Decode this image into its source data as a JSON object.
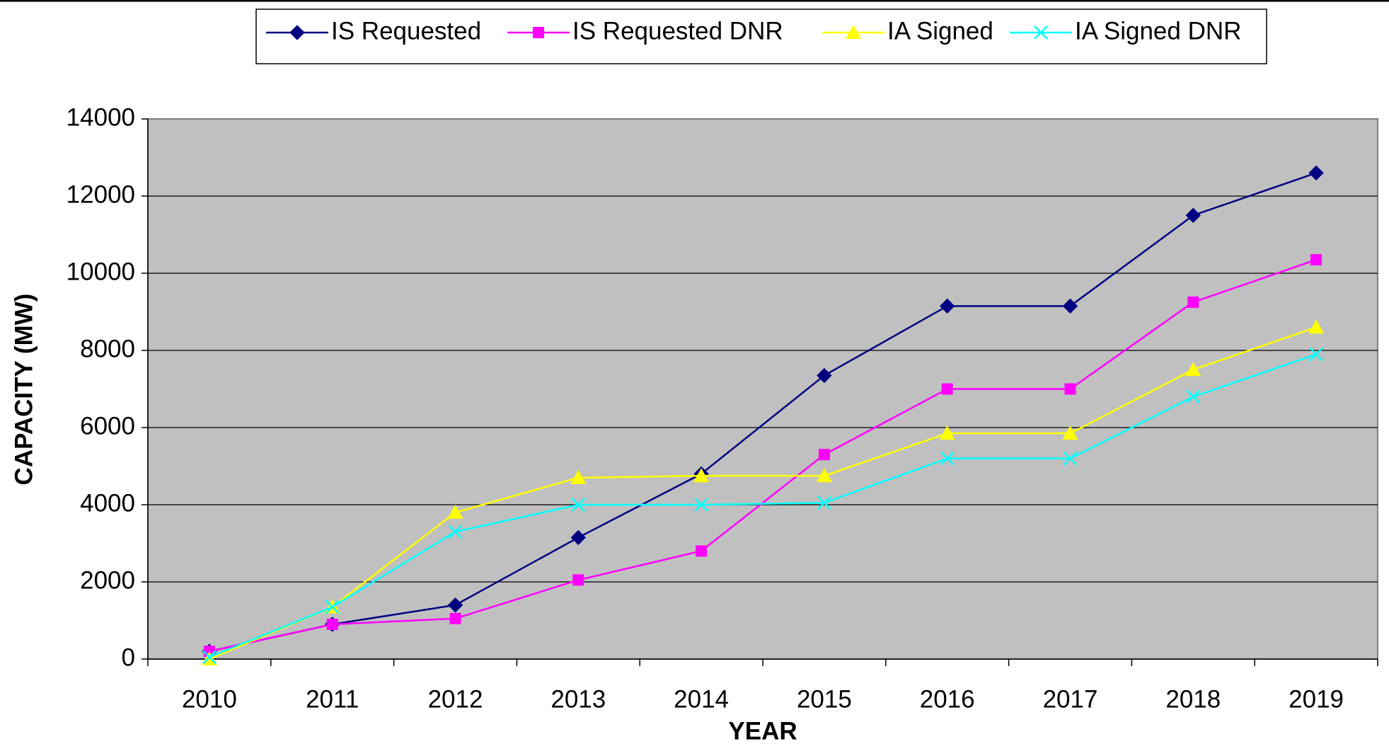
{
  "chart_data": {
    "type": "line",
    "xlabel": "YEAR",
    "ylabel": "CAPACITY (MW)",
    "categories": [
      "2010",
      "2011",
      "2012",
      "2013",
      "2014",
      "2015",
      "2016",
      "2017",
      "2018",
      "2019"
    ],
    "series": [
      {
        "name": "IS Requested",
        "color": "#000080",
        "marker": "diamond",
        "values": [
          200,
          900,
          1400,
          3150,
          4800,
          7350,
          9150,
          9150,
          11500,
          12600
        ]
      },
      {
        "name": "IS Requested DNR",
        "color": "#ff00ff",
        "marker": "square",
        "values": [
          200,
          900,
          1050,
          2050,
          2800,
          5300,
          7000,
          7000,
          9250,
          10350
        ]
      },
      {
        "name": "IA Signed",
        "color": "#ffff00",
        "marker": "triangle",
        "values": [
          0,
          1350,
          3800,
          4700,
          4750,
          4750,
          5850,
          5850,
          7500,
          8600
        ]
      },
      {
        "name": "IA Signed DNR",
        "color": "#00ffff",
        "marker": "x",
        "values": [
          50,
          1350,
          3300,
          4000,
          4000,
          4050,
          5200,
          5200,
          6800,
          7900
        ]
      }
    ],
    "ylim": [
      0,
      14000
    ],
    "yticks": [
      0,
      2000,
      4000,
      6000,
      8000,
      10000,
      12000,
      14000
    ],
    "grid": true,
    "legend": "top"
  }
}
